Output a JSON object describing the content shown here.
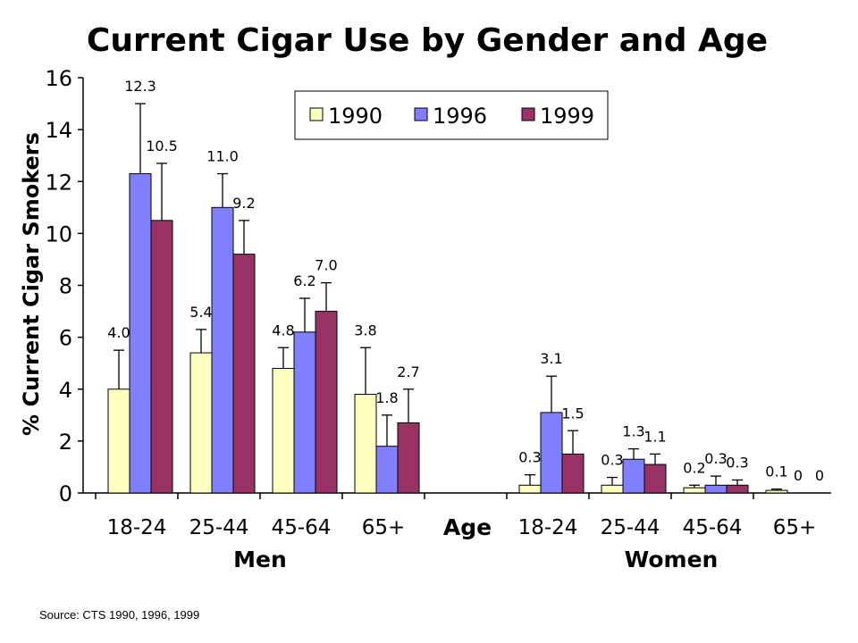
{
  "chart_data": {
    "type": "bar",
    "title": "Current Cigar Use by Gender and Age",
    "ylabel": "% Current Cigar Smokers",
    "xlabel": "Age",
    "ylim": [
      0,
      16
    ],
    "yticks": [
      0,
      2,
      4,
      6,
      8,
      10,
      12,
      14,
      16
    ],
    "groups": [
      {
        "name": "Men",
        "categories": [
          "18-24",
          "25-44",
          "45-64",
          "65+"
        ]
      },
      {
        "name": "Women",
        "categories": [
          "18-24",
          "25-44",
          "45-64",
          "65+"
        ]
      }
    ],
    "series": [
      {
        "name": "1990",
        "color": "#FFFFC0",
        "values": [
          4.0,
          5.4,
          4.8,
          3.8,
          0.3,
          0.3,
          0.2,
          0.1
        ],
        "error_upper": [
          5.5,
          6.3,
          5.6,
          5.6,
          0.7,
          0.6,
          0.3,
          0.15
        ]
      },
      {
        "name": "1996",
        "color": "#8080FF",
        "values": [
          12.3,
          11.0,
          6.2,
          1.8,
          3.1,
          1.3,
          0.3,
          0
        ],
        "error_upper": [
          15.0,
          12.3,
          7.5,
          3.0,
          4.5,
          1.7,
          0.65,
          null
        ]
      },
      {
        "name": "1999",
        "color": "#993366",
        "values": [
          10.5,
          9.2,
          7.0,
          2.7,
          1.5,
          1.1,
          0.3,
          0
        ],
        "error_upper": [
          12.7,
          10.5,
          8.1,
          4.0,
          2.4,
          1.5,
          0.5,
          null
        ]
      }
    ],
    "data_labels": [
      [
        "4.0",
        "5.4",
        "4.8",
        "3.8",
        "0.3",
        "0.3",
        "0.2",
        "0.1"
      ],
      [
        "12.3",
        "11.0",
        "6.2",
        "1.8",
        "3.1",
        "1.3",
        "0.3",
        "0"
      ],
      [
        "10.5",
        "9.2",
        "7.0",
        "2.7",
        "1.5",
        "1.1",
        "0.3",
        "0"
      ]
    ],
    "legend_position": "top-right",
    "grid": false
  },
  "source": "Source:  CTS 1990, 1996, 1999"
}
